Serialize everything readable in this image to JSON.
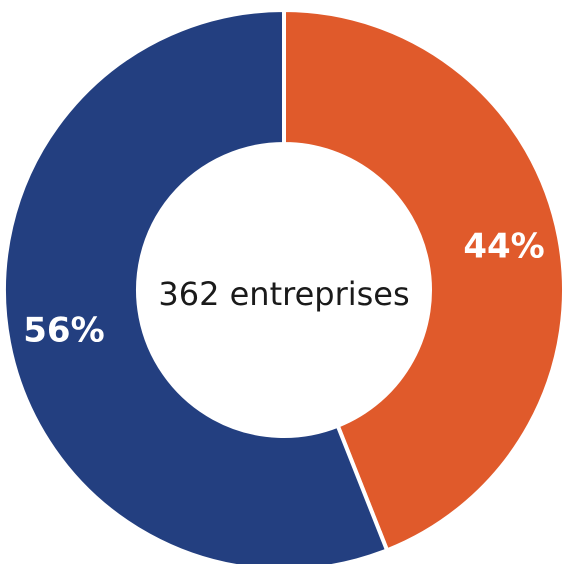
{
  "chart_data": {
    "type": "pie",
    "donut": true,
    "center_text": "362 entreprises",
    "slices": [
      {
        "value": 44,
        "label": "44%",
        "color": "#E05A2B"
      },
      {
        "value": 56,
        "label": "56%",
        "color": "#233F80"
      }
    ],
    "legend": "none"
  }
}
